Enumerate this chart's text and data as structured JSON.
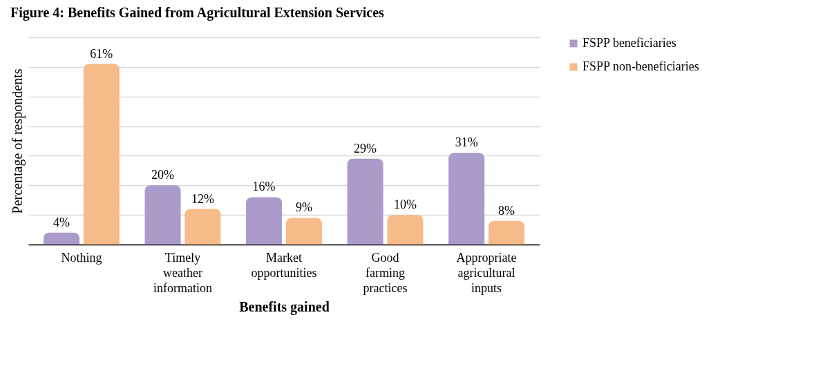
{
  "chart_data": {
    "type": "bar",
    "title": "Figure 4: Benefits Gained from Agricultural Extension Services",
    "xlabel": "Benefits gained",
    "ylabel": "Percentage of respondents",
    "categories": [
      "Nothing",
      "Timely weather information",
      "Market opportunities",
      "Good farming practices",
      "Appropriate agricultural inputs"
    ],
    "series": [
      {
        "name": "FSPP beneficiaries",
        "color": "#ab9bcb",
        "values": [
          4,
          20,
          16,
          29,
          31
        ],
        "value_labels": [
          "4%",
          "20%",
          "16%",
          "29%",
          "31%"
        ]
      },
      {
        "name": "FSPP non-beneficiaries",
        "color": "#f7bb8a",
        "values": [
          61,
          12,
          9,
          10,
          8
        ],
        "value_labels": [
          "61%",
          "12%",
          "9%",
          "10%",
          "8%"
        ]
      }
    ],
    "ylim": [
      0,
      70
    ],
    "yticks": [
      {
        "value": 0,
        "label": null
      },
      {
        "value": 10,
        "label": null
      },
      {
        "value": 20,
        "label": null
      },
      {
        "value": 30,
        "label": null
      },
      {
        "value": 40,
        "label": null
      },
      {
        "value": 50,
        "label": null
      },
      {
        "value": 60,
        "label": null
      },
      {
        "value": 70,
        "label": null
      }
    ],
    "grid": true,
    "legend": "top right"
  }
}
